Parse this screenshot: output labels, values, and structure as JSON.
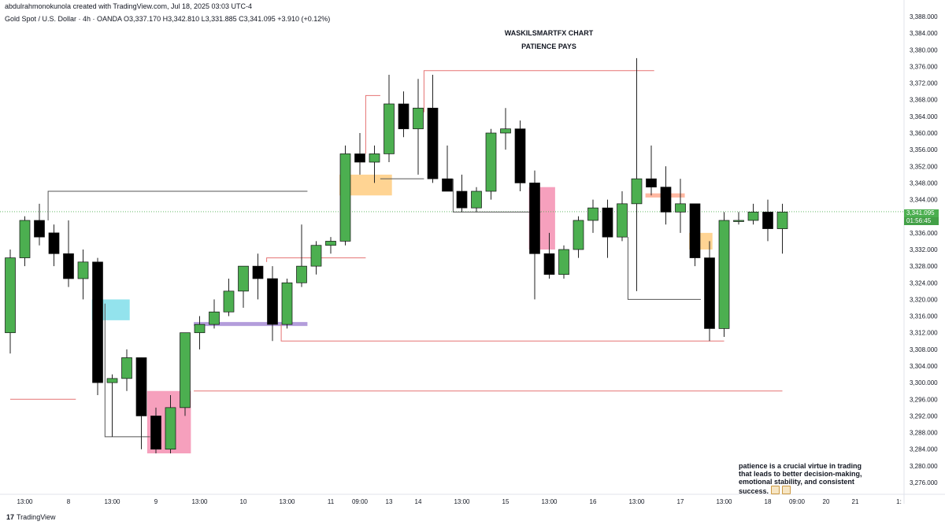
{
  "header": {
    "attribution": "abdulrahmonokunola created with TradingView.com, Jul 18, 2025 03:03 UTC-4",
    "symbol_line": "Gold Spot / U.S. Dollar · 4h · OANDA  O3,337.170  H3,342.810  L3,331.885  C3,341.095  +3.910 (+0.12%)"
  },
  "titles": {
    "main": "WASKILSMARTFX CHART",
    "sub": "PATIENCE PAYS"
  },
  "note": {
    "text": "patience is a crucial virtue in trading that leads to better decision-making, emotional stability, and consistent success."
  },
  "price_tag": {
    "price": "3,341.095",
    "countdown": "01:56:45"
  },
  "footer": {
    "brand": "TradingView",
    "mark": "17"
  },
  "colors": {
    "bull": "#4caf50",
    "bear": "#000000",
    "blue_zone": "#80deea",
    "pink_zone": "#f48fb1",
    "orange_zone": "#ffcc80",
    "purple_line": "#b39ddb",
    "red_line": "#e57373",
    "gray_line": "#555555",
    "price_line": "#4caf50"
  },
  "chart_data": {
    "type": "candlestick",
    "y_ticks": [
      "3,388.000",
      "3,384.000",
      "3,380.000",
      "3,376.000",
      "3,372.000",
      "3,368.000",
      "3,364.000",
      "3,360.000",
      "3,356.000",
      "3,352.000",
      "3,348.000",
      "3,344.000",
      "3,340.000",
      "3,336.000",
      "3,332.000",
      "3,328.000",
      "3,324.000",
      "3,320.000",
      "3,316.000",
      "3,312.000",
      "3,308.000",
      "3,304.000",
      "3,300.000",
      "3,296.000",
      "3,292.000",
      "3,288.000",
      "3,284.000",
      "3,280.000",
      "3,276.000"
    ],
    "ylim": [
      3272,
      3390
    ],
    "x_labels": [
      {
        "label": "13:00",
        "idx": 1
      },
      {
        "label": "8",
        "idx": 4
      },
      {
        "label": "13:00",
        "idx": 7
      },
      {
        "label": "9",
        "idx": 10
      },
      {
        "label": "13:00",
        "idx": 13
      },
      {
        "label": "10",
        "idx": 16
      },
      {
        "label": "13:00",
        "idx": 19
      },
      {
        "label": "11",
        "idx": 22
      },
      {
        "label": "09:00",
        "idx": 24
      },
      {
        "label": "13",
        "idx": 26
      },
      {
        "label": "14",
        "idx": 28
      },
      {
        "label": "13:00",
        "idx": 31
      },
      {
        "label": "15",
        "idx": 34
      },
      {
        "label": "13:00",
        "idx": 37
      },
      {
        "label": "16",
        "idx": 40
      },
      {
        "label": "13:00",
        "idx": 43
      },
      {
        "label": "17",
        "idx": 46
      },
      {
        "label": "13:00",
        "idx": 49
      },
      {
        "label": "18",
        "idx": 52
      },
      {
        "label": "09:00",
        "idx": 54
      },
      {
        "label": "20",
        "idx": 56
      },
      {
        "label": "21",
        "idx": 58
      },
      {
        "label": "1:",
        "idx": 61
      }
    ],
    "candles": [
      [
        3312,
        3332,
        3307,
        3330
      ],
      [
        3330,
        3340,
        3328,
        3339
      ],
      [
        3339,
        3343,
        3333,
        3335
      ],
      [
        3336,
        3338,
        3328,
        3331
      ],
      [
        3331,
        3339,
        3323,
        3325
      ],
      [
        3325,
        3332,
        3320,
        3329
      ],
      [
        3329,
        3330,
        3297,
        3300
      ],
      [
        3300,
        3302,
        3287,
        3301
      ],
      [
        3301,
        3308,
        3298,
        3306
      ],
      [
        3306,
        3306,
        3284,
        3292
      ],
      [
        3292,
        3294,
        3283,
        3284
      ],
      [
        3284,
        3297,
        3283,
        3294
      ],
      [
        3294,
        3312,
        3292,
        3312
      ],
      [
        3312,
        3316,
        3308,
        3314
      ],
      [
        3314,
        3320,
        3313,
        3317
      ],
      [
        3317,
        3325,
        3316,
        3322
      ],
      [
        3322,
        3328,
        3318,
        3328
      ],
      [
        3328,
        3331,
        3320,
        3325
      ],
      [
        3325,
        3328,
        3310,
        3314
      ],
      [
        3314,
        3325,
        3313,
        3324
      ],
      [
        3324,
        3338,
        3323,
        3328
      ],
      [
        3328,
        3334,
        3326,
        3333
      ],
      [
        3333,
        3335,
        3331,
        3334
      ],
      [
        3334,
        3357,
        3333,
        3355
      ],
      [
        3355,
        3360,
        3350,
        3353
      ],
      [
        3353,
        3357,
        3348,
        3355
      ],
      [
        3355,
        3374,
        3353,
        3367
      ],
      [
        3367,
        3370,
        3359,
        3361
      ],
      [
        3361,
        3373,
        3350,
        3366
      ],
      [
        3366,
        3374,
        3348,
        3349
      ],
      [
        3349,
        3357,
        3346,
        3346
      ],
      [
        3346,
        3350,
        3341,
        3342
      ],
      [
        3342,
        3347,
        3341,
        3346
      ],
      [
        3346,
        3361,
        3344,
        3360
      ],
      [
        3360,
        3366,
        3356,
        3361
      ],
      [
        3361,
        3363,
        3346,
        3348
      ],
      [
        3348,
        3351,
        3320,
        3331
      ],
      [
        3331,
        3336,
        3325,
        3326
      ],
      [
        3326,
        3333,
        3325,
        3332
      ],
      [
        3332,
        3340,
        3330,
        3339
      ],
      [
        3339,
        3344,
        3336,
        3342
      ],
      [
        3342,
        3344,
        3330,
        3335
      ],
      [
        3335,
        3346,
        3334,
        3343
      ],
      [
        3343,
        3378,
        3322,
        3349
      ],
      [
        3349,
        3357,
        3345,
        3347
      ],
      [
        3347,
        3352,
        3338,
        3341
      ],
      [
        3341,
        3349,
        3336,
        3343
      ],
      [
        3343,
        3343,
        3328,
        3330
      ],
      [
        3330,
        3334,
        3310,
        3313
      ],
      [
        3313,
        3341,
        3311,
        3339
      ],
      [
        3339,
        3341,
        3338,
        3339
      ],
      [
        3339,
        3343,
        3338,
        3341
      ],
      [
        3341,
        3344,
        3334,
        3337
      ],
      [
        3337,
        3343,
        3331,
        3341
      ]
    ],
    "zones": [
      {
        "kind": "blue",
        "from": 5.6,
        "to": 8.2,
        "low": 3315,
        "high": 3320
      },
      {
        "kind": "pink",
        "from": 9.4,
        "to": 12.4,
        "low": 3283,
        "high": 3298
      },
      {
        "kind": "orange",
        "from": 22.6,
        "to": 26.2,
        "low": 3345,
        "high": 3350
      },
      {
        "kind": "pink",
        "from": 35.6,
        "to": 37.4,
        "low": 3332,
        "high": 3347
      },
      {
        "kind": "orange",
        "from": 46.6,
        "to": 48.2,
        "low": 3332,
        "high": 3336
      },
      {
        "kind": "orange_thin",
        "from": 43.6,
        "to": 46.3,
        "low": 3344.5,
        "high": 3345.5
      }
    ],
    "purple_line": {
      "from": 12.6,
      "to": 20.4,
      "price": 3314
    },
    "lines": [
      {
        "color": "gray",
        "pts": [
          [
            2.6,
            3339
          ],
          [
            2.6,
            3346
          ],
          [
            20.4,
            3346
          ]
        ]
      },
      {
        "color": "gray",
        "pts": [
          [
            6.5,
            3319
          ],
          [
            6.5,
            3287
          ],
          [
            9.6,
            3287
          ]
        ]
      },
      {
        "color": "red",
        "pts": [
          [
            0,
            3296
          ],
          [
            4.5,
            3296
          ]
        ]
      },
      {
        "color": "red",
        "pts": [
          [
            12.6,
            3298
          ],
          [
            53,
            3298
          ]
        ]
      },
      {
        "color": "red",
        "pts": [
          [
            18.6,
            3314
          ],
          [
            18.6,
            3310
          ],
          [
            49,
            3310
          ]
        ]
      },
      {
        "color": "red",
        "pts": [
          [
            17.6,
            3329
          ],
          [
            17.6,
            3330
          ],
          [
            24.4,
            3330
          ]
        ]
      },
      {
        "color": "red",
        "pts": [
          [
            24.4,
            3355
          ],
          [
            24.4,
            3369
          ],
          [
            25.4,
            3369
          ]
        ]
      },
      {
        "color": "red",
        "pts": [
          [
            28.4,
            3365
          ],
          [
            28.4,
            3375
          ],
          [
            44.2,
            3375
          ]
        ]
      },
      {
        "color": "gray",
        "pts": [
          [
            30.4,
            3349
          ],
          [
            30.4,
            3341
          ],
          [
            36.4,
            3341
          ]
        ]
      },
      {
        "color": "gray",
        "pts": [
          [
            25.4,
            3349
          ],
          [
            28.4,
            3349
          ]
        ]
      },
      {
        "color": "gray",
        "pts": [
          [
            42.4,
            3335
          ],
          [
            42.4,
            3320
          ],
          [
            47.4,
            3320
          ]
        ]
      }
    ],
    "last_price": 3341.095,
    "grid": false
  }
}
